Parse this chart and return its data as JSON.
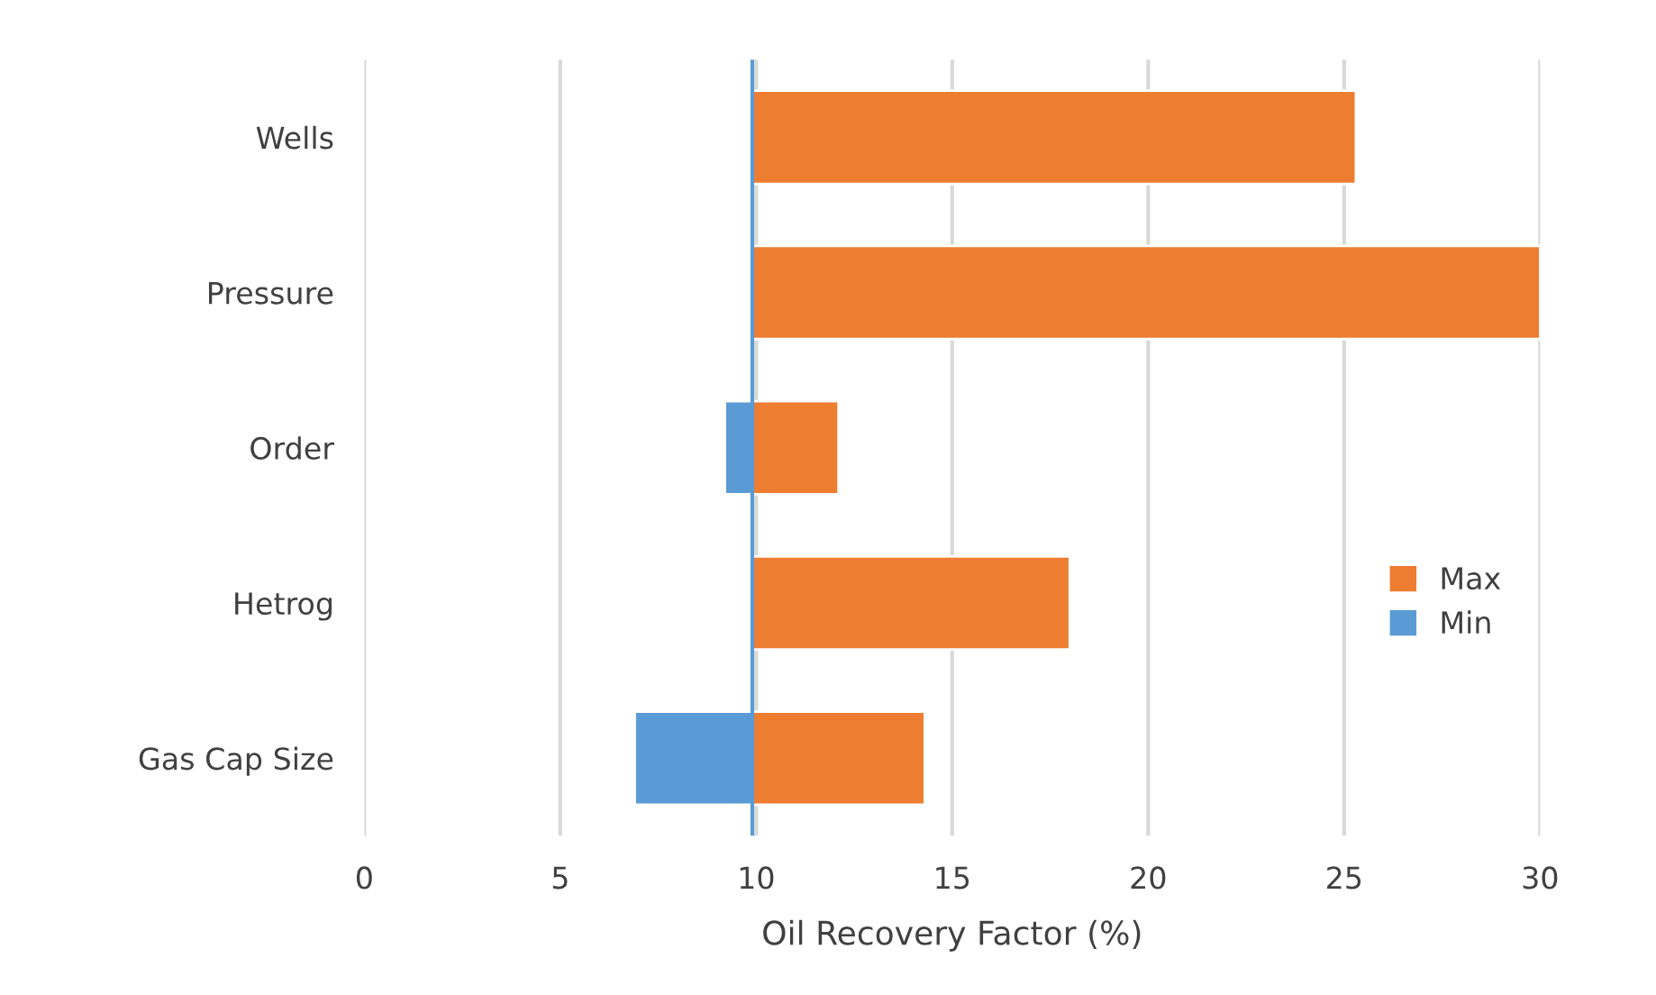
{
  "chart_data": {
    "type": "bar",
    "orientation": "horizontal",
    "xlabel": "Oil Recovery Factor (%)",
    "categories": [
      "Wells",
      "Pressure",
      "Order",
      "Hetrog",
      "Gas Cap Size"
    ],
    "series": [
      {
        "name": "Max",
        "color": "#ed7d31",
        "base": [
          9.9,
          9.9,
          9.9,
          9.9,
          9.9
        ],
        "values": [
          15.4,
          20.1,
          2.2,
          8.1,
          4.4
        ]
      },
      {
        "name": "Min",
        "color": "#5b9bd5",
        "base": [
          null,
          null,
          9.9,
          null,
          9.9
        ],
        "values": [
          null,
          null,
          -0.7,
          null,
          -3.0
        ]
      }
    ],
    "xlim": [
      0,
      30
    ],
    "xticks": [
      0,
      5,
      10,
      15,
      20,
      25,
      30
    ],
    "ref_lines": [
      {
        "axis": "x",
        "value": 9.9,
        "color": "#5b9bd5"
      }
    ],
    "grid": "x",
    "legend": "right"
  }
}
